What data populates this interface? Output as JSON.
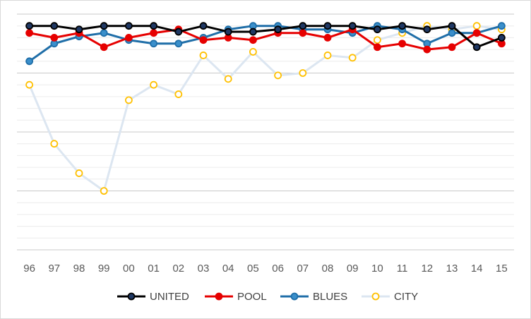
{
  "chart_data": {
    "type": "line",
    "title": "",
    "xlabel": "",
    "ylabel": "",
    "categories": [
      "96",
      "97",
      "98",
      "99",
      "00",
      "01",
      "02",
      "03",
      "04",
      "05",
      "06",
      "07",
      "08",
      "09",
      "10",
      "11",
      "12",
      "13",
      "14",
      "15"
    ],
    "ylim": [
      0,
      20
    ],
    "y_inverted": true,
    "grid": true,
    "legend_position": "bottom",
    "series": [
      {
        "name": "UNITED",
        "color": "#000000",
        "marker_fill": "#1f3864",
        "values": [
          1,
          1,
          1.3,
          1,
          1,
          1,
          1.5,
          1,
          1.5,
          1.5,
          1.3,
          1,
          1,
          1,
          1.3,
          1,
          1.3,
          1,
          2.8,
          2
        ]
      },
      {
        "name": "POOL",
        "color": "#e60000",
        "marker_fill": "#e60000",
        "values": [
          1.6,
          2,
          1.6,
          2.8,
          2,
          1.6,
          1.3,
          2.2,
          2,
          2.2,
          1.6,
          1.6,
          2,
          1.3,
          2.8,
          2.5,
          3,
          2.8,
          1.6,
          2.5
        ]
      },
      {
        "name": "BLUES",
        "color": "#1f6ea8",
        "marker_fill": "#3a8fcb",
        "values": [
          4,
          2.5,
          1.9,
          1.6,
          2.2,
          2.5,
          2.5,
          2,
          1.3,
          1,
          1,
          1.3,
          1.3,
          1.6,
          1,
          1.3,
          2.5,
          1.6,
          1.6,
          1
        ]
      },
      {
        "name": "CITY",
        "color": "#dce6f1",
        "marker_fill": "#ffffff",
        "marker_stroke": "#ffc000",
        "values": [
          6,
          11,
          13.5,
          15,
          7.3,
          6,
          6.8,
          3.5,
          5.5,
          3.2,
          5.2,
          5,
          3.5,
          3.7,
          2.2,
          1.6,
          1,
          1.3,
          1,
          1.3
        ]
      }
    ]
  }
}
